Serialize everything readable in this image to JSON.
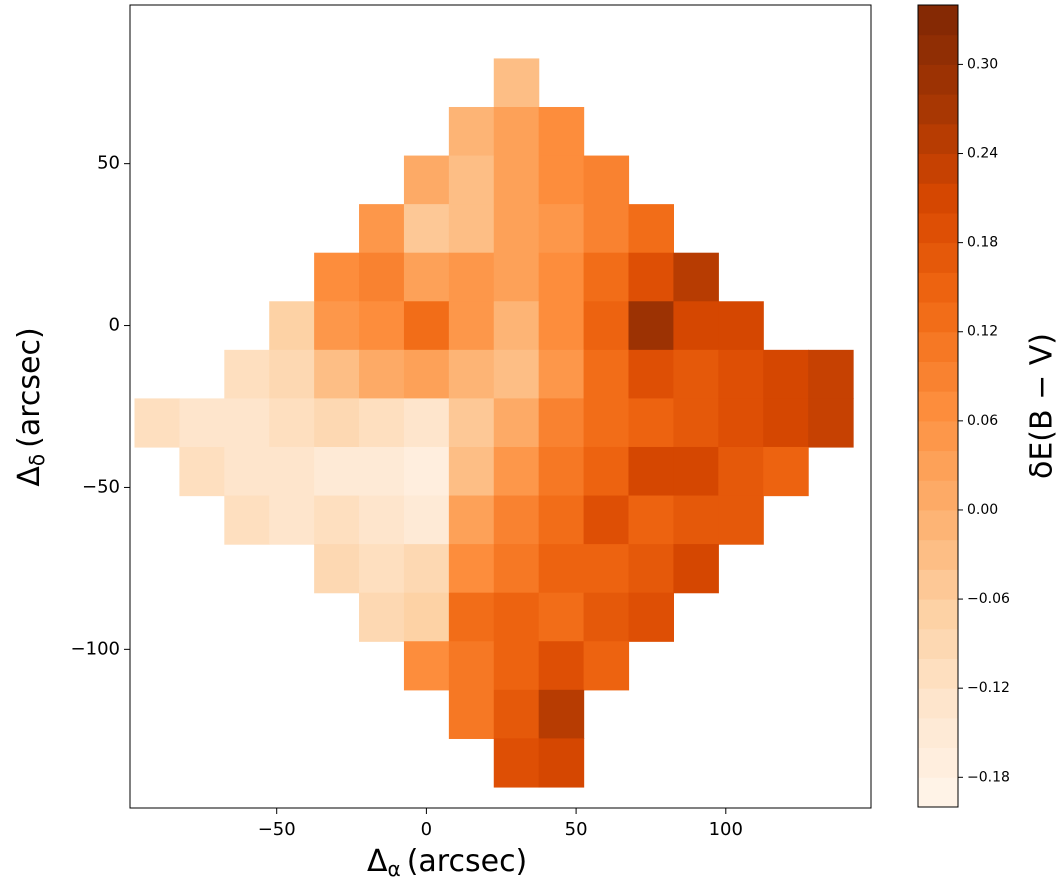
{
  "chart_data": {
    "type": "heatmap",
    "colormap": [
      "#fff5eb",
      "#fee6ce",
      "#fdd0a2",
      "#fdae6b",
      "#fd8d3c",
      "#f16913",
      "#d94801",
      "#a63603",
      "#7f2704"
    ],
    "xlabel": {
      "symbol": "Δ",
      "subscript": "α",
      "unit": "(arcsec)"
    },
    "ylabel": {
      "symbol": "Δ",
      "subscript": "δ",
      "unit": "(arcsec)"
    },
    "colorbar_label": "δE(B − V)",
    "xlim": [
      -99,
      148.5
    ],
    "ylim": [
      -149,
      99
    ],
    "xticks": [
      {
        "value": -50,
        "label": "−50"
      },
      0,
      50,
      100
    ],
    "yticks": [
      {
        "value": -100,
        "label": "−100"
      },
      {
        "value": -50,
        "label": "−50"
      },
      0,
      50
    ],
    "clim": [
      -0.2,
      0.34
    ],
    "cticks": [
      {
        "value": -0.18,
        "label": "−0.18"
      },
      {
        "value": -0.12,
        "label": "−0.12"
      },
      {
        "value": -0.06,
        "label": "−0.06"
      },
      {
        "value": 0,
        "label": "0.00"
      },
      0.06,
      0.12,
      0.18,
      0.24,
      {
        "value": 0.3,
        "label": "0.30"
      }
    ],
    "x": [
      -90,
      -75,
      -60,
      -45,
      -30,
      -15,
      0,
      15,
      30,
      45,
      60,
      75,
      90,
      105,
      120,
      135
    ],
    "y": [
      75,
      60,
      45,
      30,
      15,
      0,
      -15,
      -30,
      -45,
      -60,
      -75,
      -90,
      -105,
      -120,
      -135
    ],
    "z": [
      [
        null,
        null,
        null,
        null,
        null,
        null,
        null,
        null,
        -0.04,
        null,
        null,
        null,
        null,
        null,
        null,
        null
      ],
      [
        null,
        null,
        null,
        null,
        null,
        null,
        null,
        -0.02,
        0.02,
        0.06,
        null,
        null,
        null,
        null,
        null,
        null
      ],
      [
        null,
        null,
        null,
        null,
        null,
        null,
        0.0,
        -0.04,
        0.02,
        0.06,
        0.08,
        null,
        null,
        null,
        null,
        null
      ],
      [
        null,
        null,
        null,
        null,
        null,
        0.04,
        -0.06,
        -0.04,
        0.02,
        0.04,
        0.08,
        0.12,
        null,
        null,
        null,
        null
      ],
      [
        null,
        null,
        null,
        null,
        0.06,
        0.08,
        0.02,
        0.04,
        0.02,
        0.06,
        0.12,
        0.18,
        0.24,
        null,
        null,
        null
      ],
      [
        null,
        null,
        null,
        -0.08,
        0.04,
        0.06,
        0.12,
        0.04,
        -0.02,
        0.06,
        0.14,
        0.28,
        0.2,
        0.2,
        null,
        null
      ],
      [
        null,
        null,
        -0.12,
        -0.1,
        -0.04,
        0.0,
        0.02,
        -0.02,
        -0.04,
        0.04,
        0.12,
        0.18,
        0.16,
        0.18,
        0.2,
        0.22
      ],
      [
        -0.12,
        -0.14,
        -0.14,
        -0.12,
        -0.1,
        -0.12,
        -0.14,
        -0.06,
        0.0,
        0.08,
        0.12,
        0.14,
        0.16,
        0.18,
        0.2,
        0.22
      ],
      [
        null,
        -0.12,
        -0.14,
        -0.14,
        -0.16,
        -0.16,
        -0.17,
        -0.04,
        0.04,
        0.1,
        0.14,
        0.2,
        0.2,
        0.16,
        0.14,
        null
      ],
      [
        null,
        null,
        -0.12,
        -0.14,
        -0.12,
        -0.14,
        -0.16,
        0.02,
        0.08,
        0.12,
        0.18,
        0.14,
        0.16,
        0.16,
        null,
        null
      ],
      [
        null,
        null,
        null,
        null,
        -0.1,
        -0.12,
        -0.1,
        0.06,
        0.1,
        0.14,
        0.14,
        0.16,
        0.2,
        null,
        null,
        null
      ],
      [
        null,
        null,
        null,
        null,
        null,
        -0.1,
        -0.08,
        0.12,
        0.14,
        0.12,
        0.16,
        0.18,
        null,
        null,
        null,
        null
      ],
      [
        null,
        null,
        null,
        null,
        null,
        null,
        0.06,
        0.1,
        0.14,
        0.18,
        0.14,
        null,
        null,
        null,
        null,
        null
      ],
      [
        null,
        null,
        null,
        null,
        null,
        null,
        null,
        0.1,
        0.16,
        0.24,
        null,
        null,
        null,
        null,
        null,
        null
      ],
      [
        null,
        null,
        null,
        null,
        null,
        null,
        null,
        null,
        0.18,
        0.2,
        null,
        null,
        null,
        null,
        null,
        null
      ]
    ]
  }
}
